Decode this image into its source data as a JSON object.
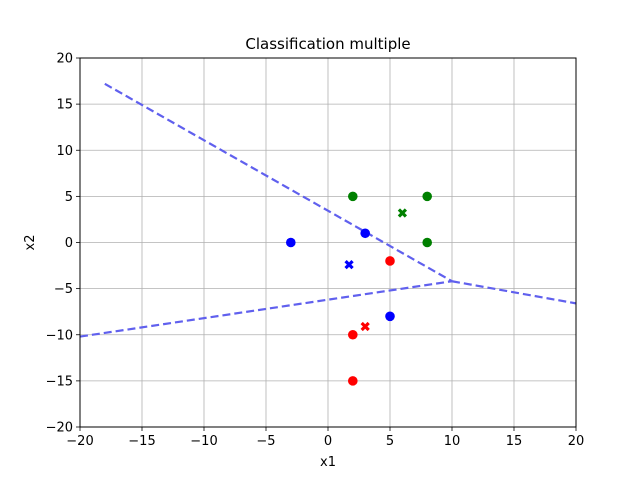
{
  "chart_data": {
    "type": "scatter",
    "title": "Classification multiple",
    "xlabel": "x1",
    "ylabel": "x2",
    "xlim": [
      -20,
      20
    ],
    "ylim": [
      -20,
      20
    ],
    "xticks": [
      -20,
      -15,
      -10,
      -5,
      0,
      5,
      10,
      15,
      20
    ],
    "yticks": [
      -20,
      -15,
      -10,
      -5,
      0,
      5,
      10,
      15,
      20
    ],
    "grid": true,
    "series": [
      {
        "color": "#0000ff",
        "marker": "circle",
        "points": [
          [
            -3,
            0
          ],
          [
            3,
            1
          ],
          [
            5,
            -8
          ]
        ]
      },
      {
        "color": "#008000",
        "marker": "circle",
        "points": [
          [
            2,
            5
          ],
          [
            8,
            5
          ],
          [
            8,
            0
          ]
        ]
      },
      {
        "color": "#ff0000",
        "marker": "circle",
        "points": [
          [
            5,
            -2
          ],
          [
            2,
            -10
          ],
          [
            2,
            -15
          ]
        ]
      },
      {
        "color": "#0000ff",
        "marker": "x",
        "points": [
          [
            1.7,
            -2.4
          ]
        ]
      },
      {
        "color": "#008000",
        "marker": "x",
        "points": [
          [
            6,
            3.2
          ]
        ]
      },
      {
        "color": "#ff0000",
        "marker": "x",
        "points": [
          [
            3,
            -9.1
          ]
        ]
      }
    ],
    "boundaries": [
      {
        "color": "#6060ee",
        "style": "dashed",
        "points": [
          [
            -18,
            17.2
          ],
          [
            10,
            -4.2
          ]
        ]
      },
      {
        "color": "#6060ee",
        "style": "dashed",
        "points": [
          [
            -20,
            -10.2
          ],
          [
            10,
            -4.2
          ]
        ]
      },
      {
        "color": "#6060ee",
        "style": "dashed",
        "points": [
          [
            10,
            -4.2
          ],
          [
            20,
            -6.6
          ]
        ]
      }
    ]
  }
}
